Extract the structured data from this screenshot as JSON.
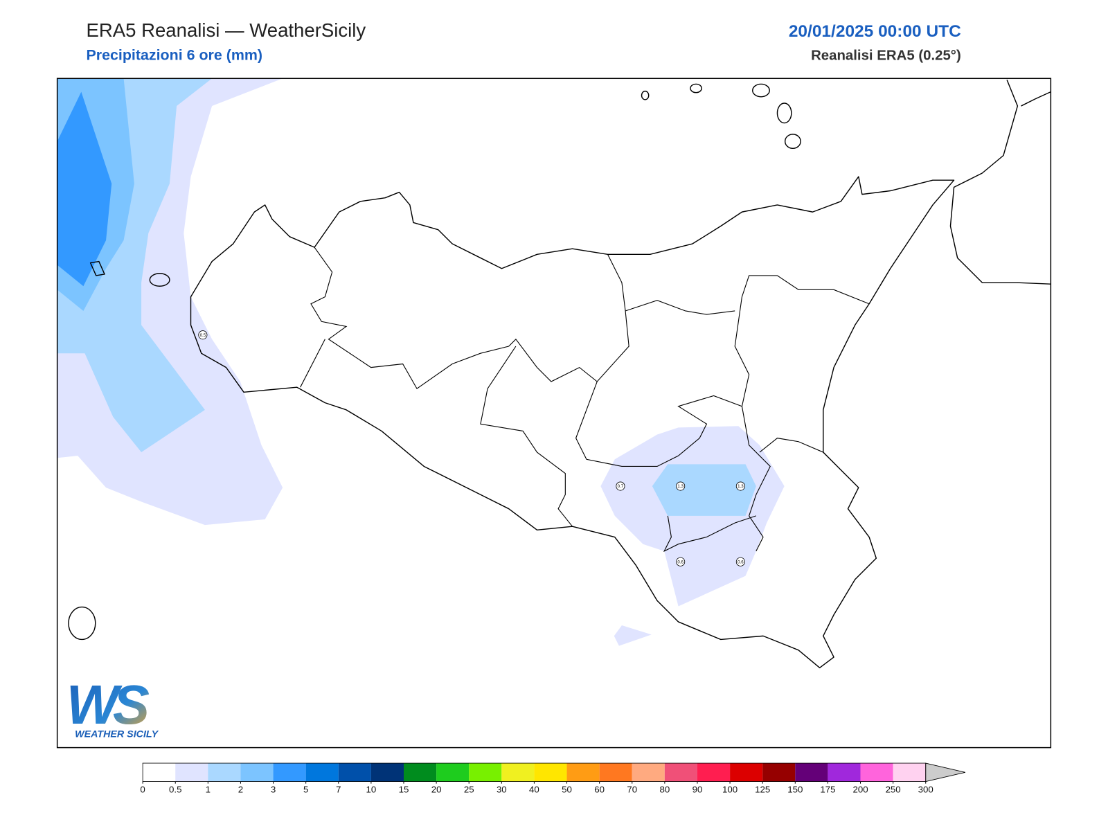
{
  "header": {
    "title": "ERA5 Reanalisi — WeatherSicily",
    "subtitle": "Precipitazioni 6 ore (mm)",
    "date": "20/01/2025 00:00 UTC",
    "source": "Reanalisi ERA5 (0.25°)"
  },
  "map": {
    "point_labels": [
      0.5,
      0.7,
      1.3,
      1.3,
      0.6,
      0.6
    ]
  },
  "legend": {
    "levels": [
      0,
      0.5,
      1,
      2,
      3,
      5,
      7,
      10,
      15,
      20,
      25,
      30,
      40,
      50,
      60,
      70,
      80,
      90,
      100,
      125,
      150,
      175,
      200,
      250,
      300
    ],
    "colors": [
      "#ffffff",
      "#e0e4ff",
      "#aad8ff",
      "#7cc4ff",
      "#3399ff",
      "#0077dd",
      "#0050aa",
      "#003377",
      "#008c1e",
      "#1ecc1e",
      "#78f000",
      "#f0f020",
      "#ffe600",
      "#ff9c14",
      "#ff7820",
      "#ffaa80",
      "#f05078",
      "#ff1e50",
      "#dc0000",
      "#960000",
      "#640078",
      "#a028dc",
      "#ff64dc",
      "#ffd2f0"
    ],
    "extend_color": "#cccccc"
  },
  "logo": {
    "mark": "WS",
    "text": "WEATHER SICILY"
  }
}
